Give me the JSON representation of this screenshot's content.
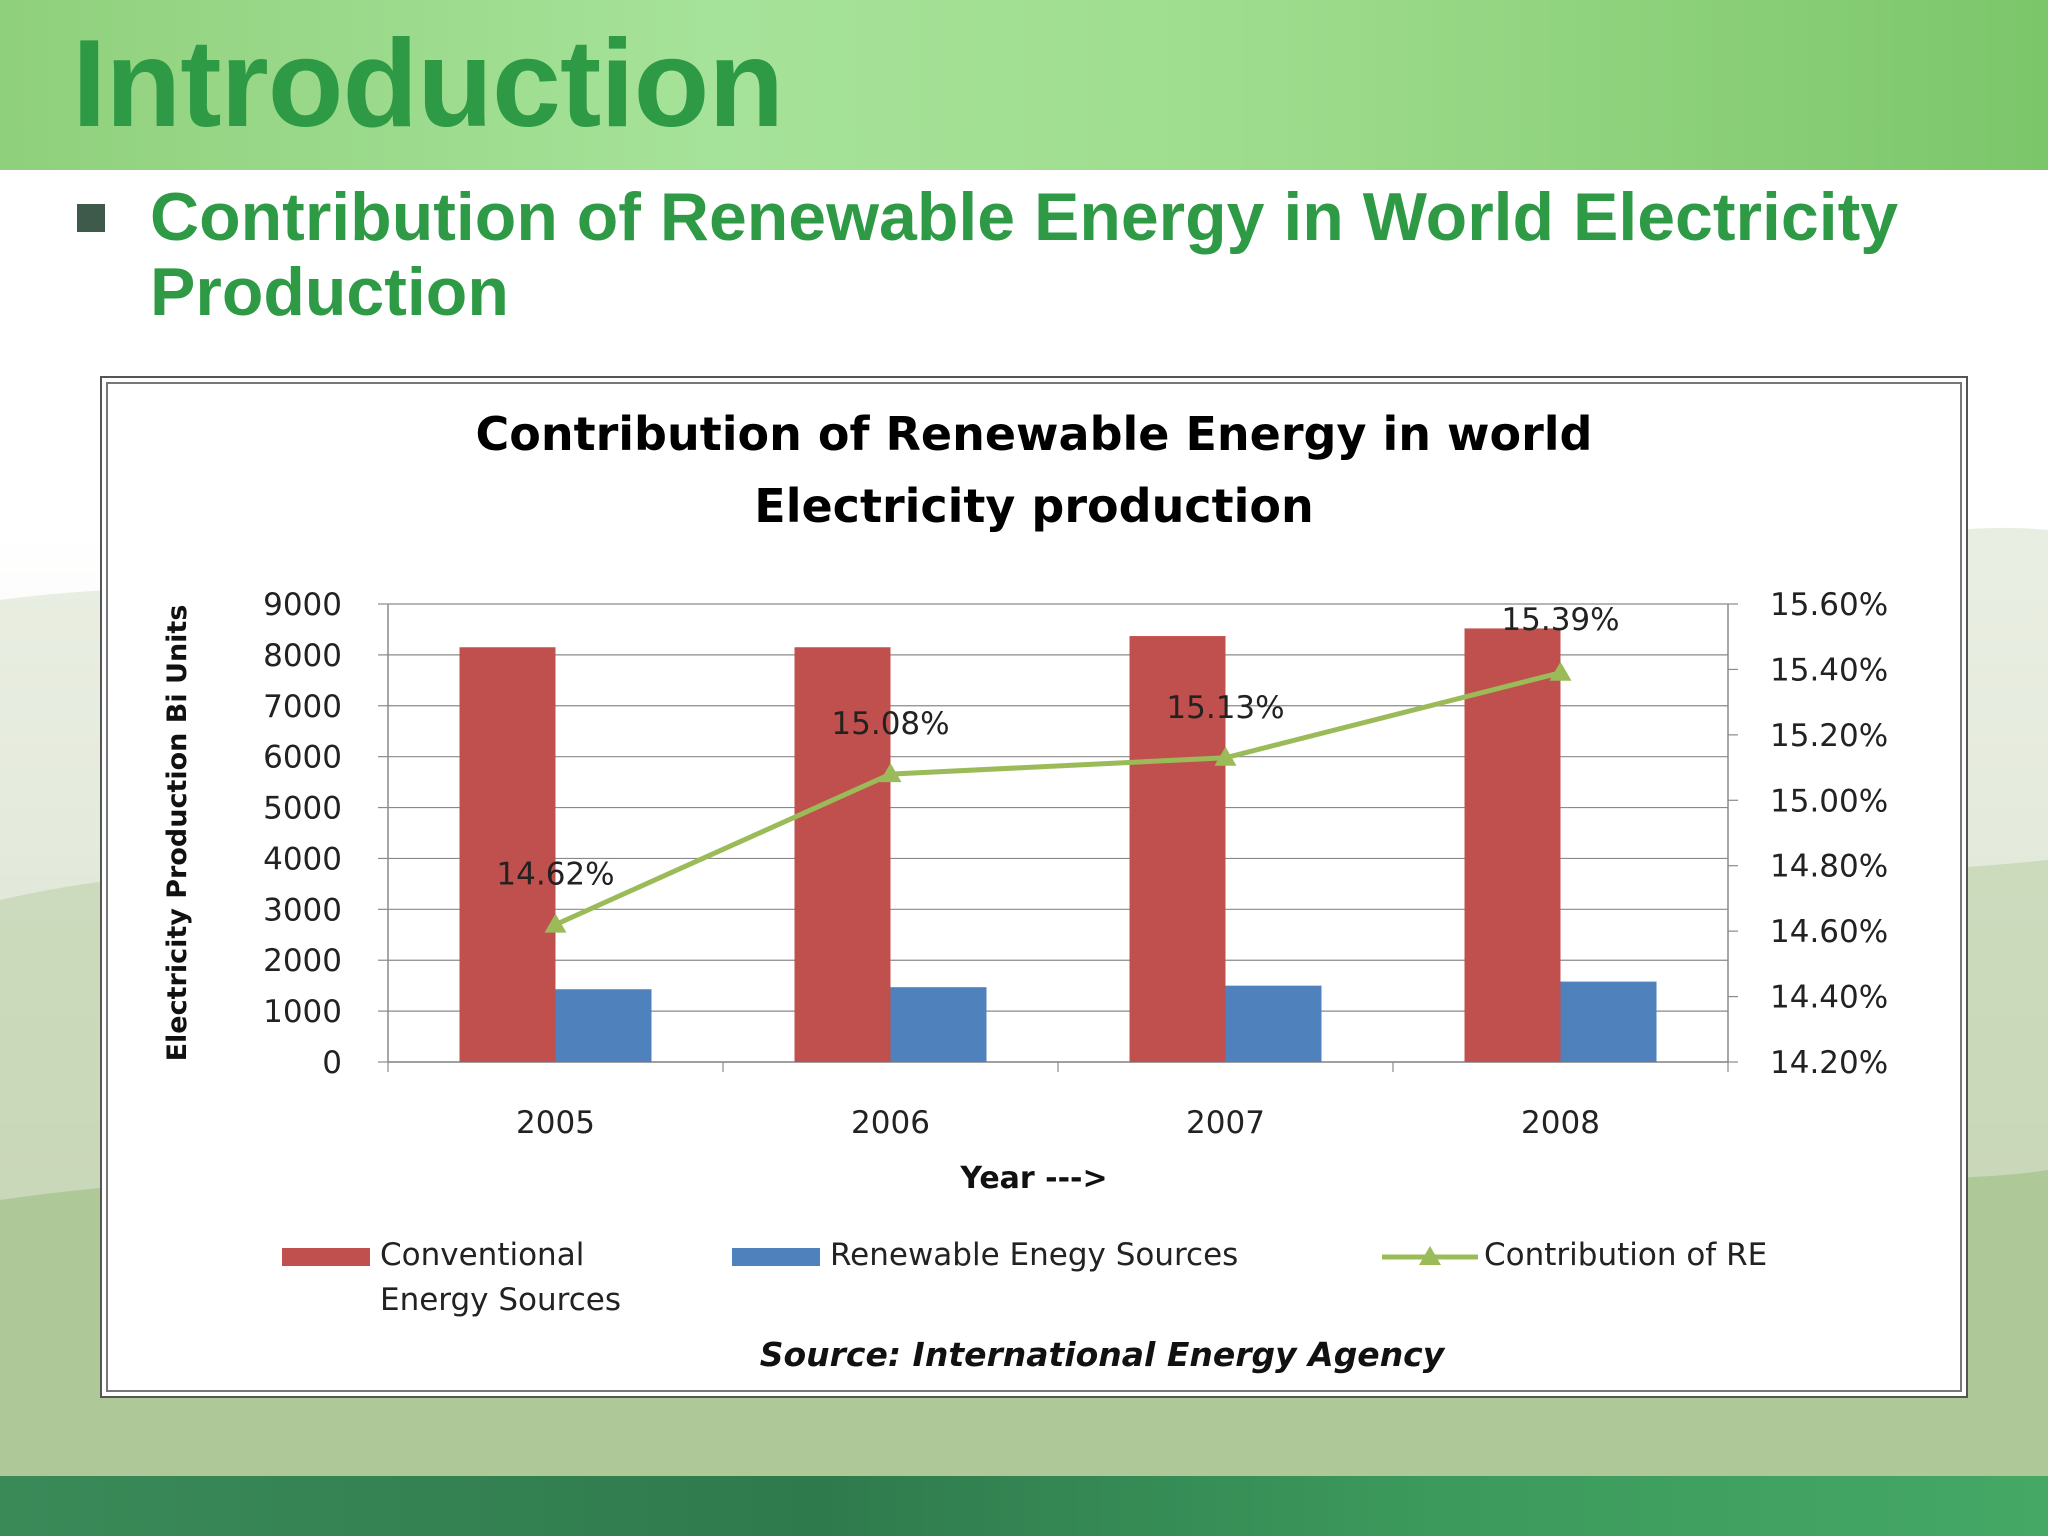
{
  "slide": {
    "title": "Introduction",
    "bullet": "Contribution of Renewable Energy in World Electricity Production"
  },
  "colors": {
    "title_green": "#2e9a45",
    "conventional": "#c0504d",
    "renewable": "#4f81bd",
    "contribution": "#9bbb59"
  },
  "chart_data": {
    "type": "bar",
    "title_lines": [
      "Contribution of Renewable Energy in world",
      "Electricity production"
    ],
    "xlabel": "Year --->",
    "ylabel": "Electricity Production Bi Units",
    "categories": [
      "2005",
      "2006",
      "2007",
      "2008"
    ],
    "ylim": [
      0,
      9000
    ],
    "y_ticks": [
      0,
      1000,
      2000,
      3000,
      4000,
      5000,
      6000,
      7000,
      8000,
      9000
    ],
    "y2lim": [
      14.2,
      15.6
    ],
    "y2_ticks": [
      "14.20%",
      "14.40%",
      "14.60%",
      "14.80%",
      "15.00%",
      "15.20%",
      "15.40%",
      "15.60%"
    ],
    "series": [
      {
        "name": "Conventional Energy Sources",
        "legend_lines": [
          "Conventional",
          "Energy Sources"
        ],
        "kind": "bar",
        "axis": "left",
        "values": [
          8150,
          8150,
          8370,
          8520
        ]
      },
      {
        "name": "Renewable Enegy Sources",
        "legend_lines": [
          "Renewable Enegy Sources"
        ],
        "kind": "bar",
        "axis": "left",
        "values": [
          1430,
          1470,
          1500,
          1580
        ]
      },
      {
        "name": "Contribution of RE",
        "legend_lines": [
          "Contribution of RE"
        ],
        "kind": "line",
        "axis": "right",
        "marker": "triangle",
        "values": [
          14.62,
          15.08,
          15.13,
          15.39
        ],
        "labels": [
          "14.62%",
          "15.08%",
          "15.13%",
          "15.39%"
        ]
      }
    ],
    "grid": true,
    "legend_position": "bottom",
    "source_note": "Source: International Energy Agency"
  }
}
